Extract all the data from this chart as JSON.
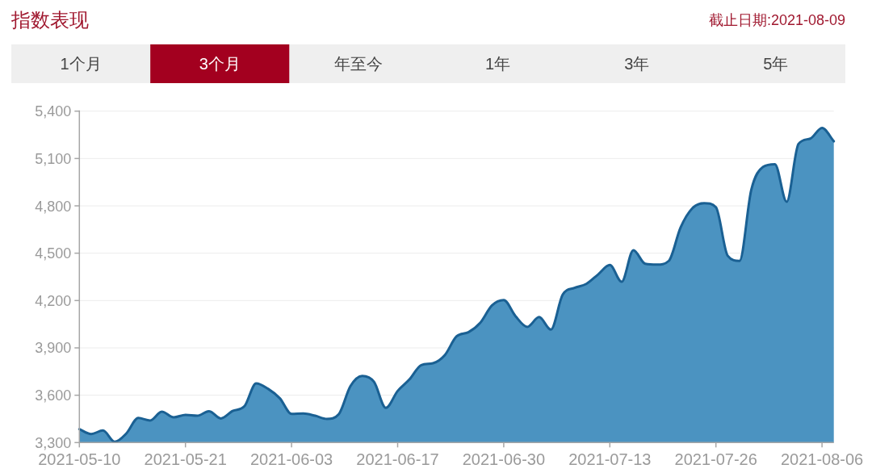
{
  "chart_data": {
    "type": "area",
    "title": "指数表现",
    "subtitle": "截止日期:2021-08-09",
    "annotations": [
      "1个月",
      "3个月",
      "年至今",
      "1年",
      "3年",
      "5年"
    ],
    "categories": [
      "2021-05-10",
      null,
      null,
      null,
      null,
      null,
      null,
      null,
      null,
      "2021-05-21",
      null,
      null,
      null,
      null,
      null,
      null,
      null,
      null,
      "2021-06-03",
      null,
      null,
      null,
      null,
      null,
      null,
      null,
      null,
      "2021-06-17",
      null,
      null,
      null,
      null,
      null,
      null,
      null,
      null,
      "2021-06-30",
      null,
      null,
      null,
      null,
      null,
      null,
      null,
      null,
      "2021-07-13",
      null,
      null,
      null,
      null,
      null,
      null,
      null,
      null,
      "2021-07-26",
      null,
      null,
      null,
      null,
      null,
      null,
      null,
      null,
      "2021-08-06",
      null
    ],
    "series": [
      {
        "color": "#4b93c1",
        "values": [
          3385,
          3354,
          3377,
          3305,
          3359,
          3456,
          3440,
          3496,
          3460,
          3475,
          3470,
          3499,
          3453,
          3500,
          3530,
          3675,
          3641,
          3581,
          3482,
          3484,
          3470,
          3450,
          3479,
          3658,
          3722,
          3684,
          3520,
          3627,
          3700,
          3791,
          3803,
          3854,
          3973,
          3999,
          4058,
          4169,
          4203,
          4101,
          4033,
          4095,
          4016,
          4237,
          4280,
          4305,
          4365,
          4425,
          4319,
          4519,
          4433,
          4428,
          4451,
          4663,
          4785,
          4817,
          4791,
          4484,
          4451,
          4902,
          5047,
          5064,
          4826,
          5192,
          5226,
          5294,
          5209
        ]
      }
    ],
    "ylim": [
      3300,
      5400
    ],
    "yticks": [
      {
        "value": 3300,
        "label": "3,300"
      },
      {
        "value": 3600,
        "label": "3,600"
      },
      {
        "value": 3900,
        "label": "3,900"
      },
      {
        "value": 4200,
        "label": "4,200"
      },
      {
        "value": 4500,
        "label": "4,500"
      },
      {
        "value": 4800,
        "label": "4,800"
      },
      {
        "value": 5100,
        "label": "5,100"
      },
      {
        "value": 5400,
        "label": "5,400"
      }
    ],
    "grid": "y"
  }
}
